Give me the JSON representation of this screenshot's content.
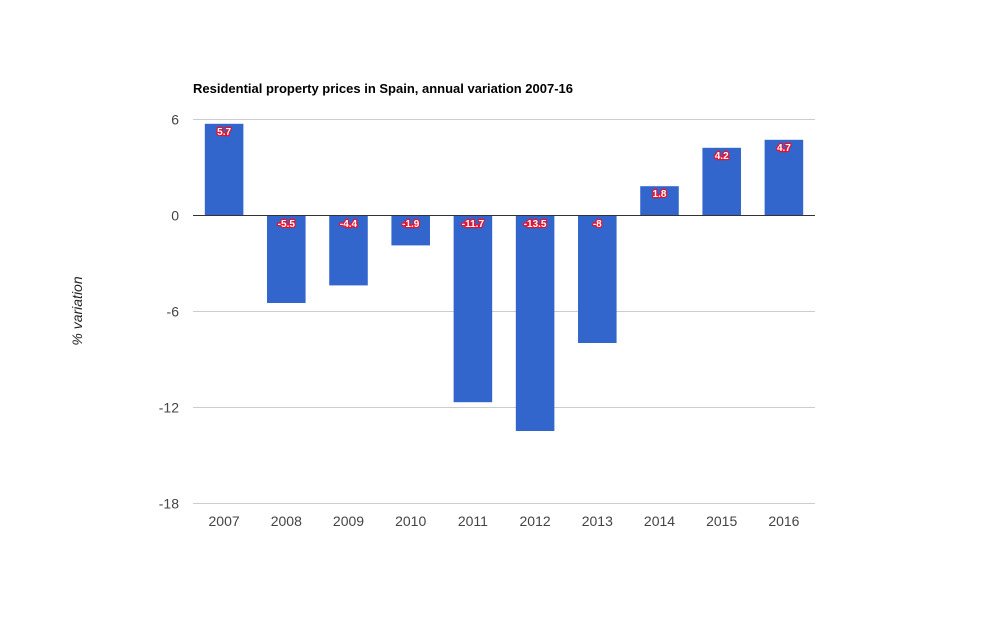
{
  "chart_data": {
    "type": "bar",
    "title": "Residential property prices in Spain, annual variation 2007-16",
    "xlabel": "",
    "ylabel": "% variation",
    "categories": [
      "2007",
      "2008",
      "2009",
      "2010",
      "2011",
      "2012",
      "2013",
      "2014",
      "2015",
      "2016"
    ],
    "values": [
      5.7,
      -5.5,
      -4.4,
      -1.9,
      -11.7,
      -13.5,
      -8,
      1.8,
      4.2,
      4.7
    ],
    "data_labels": [
      "5.7",
      "-5.5",
      "-4.4",
      "-1.9",
      "-11.7",
      "-13.5",
      "-8",
      "1.8",
      "4.2",
      "4.7"
    ],
    "ylim": [
      -18,
      6
    ],
    "yticks": [
      6,
      0,
      -6,
      -12,
      -18
    ],
    "ytick_labels": [
      "6",
      "0",
      "-6",
      "-12",
      "-18"
    ],
    "grid": true,
    "legend": "none",
    "colors": {
      "bar": "#3366cc",
      "gridline": "#cccccc",
      "baseline": "#333333",
      "label_fill": "#ffffff",
      "label_outline": "#e8112d"
    }
  }
}
